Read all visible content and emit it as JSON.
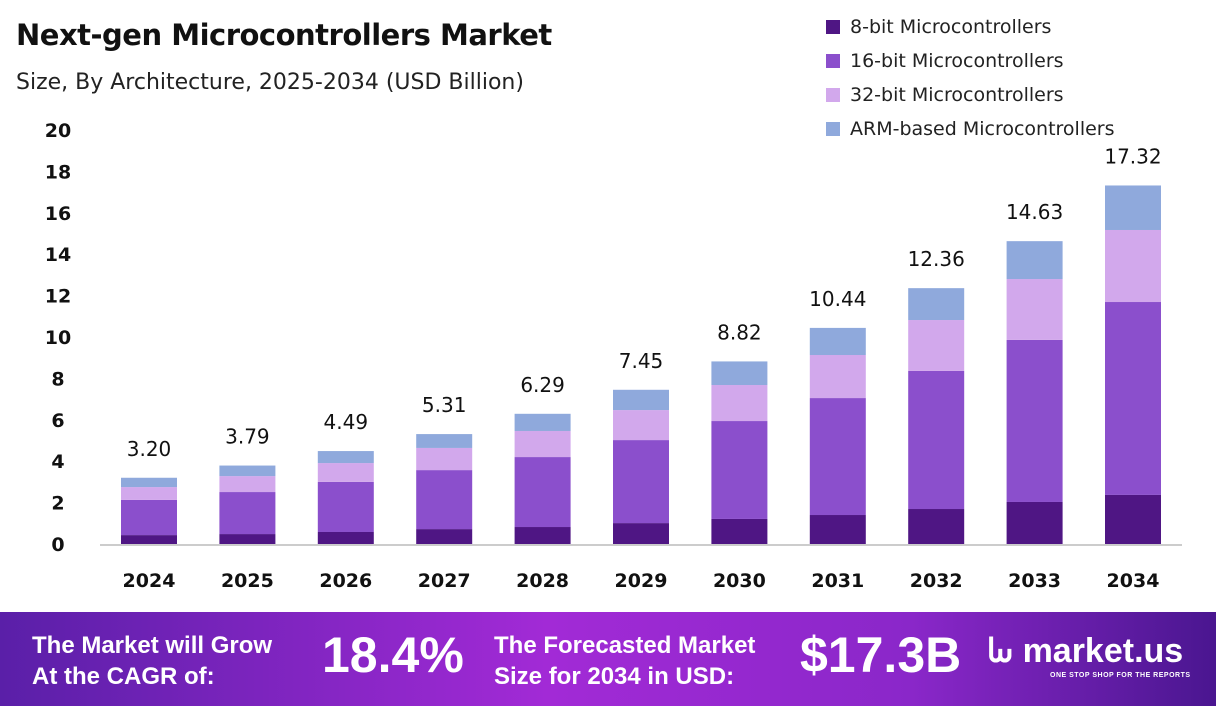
{
  "chart_data": {
    "type": "bar",
    "stacked": true,
    "title": "Next-gen Microcontrollers Market",
    "subtitle": "Size, By Architecture, 2025-2034 (USD Billion)",
    "categories": [
      "2024",
      "2025",
      "2026",
      "2027",
      "2028",
      "2029",
      "2030",
      "2031",
      "2032",
      "2033",
      "2034"
    ],
    "series": [
      {
        "name": "8-bit Microcontrollers",
        "color": "#4f1684",
        "values": [
          0.43,
          0.48,
          0.58,
          0.72,
          0.82,
          1.01,
          1.21,
          1.4,
          1.69,
          2.03,
          2.37
        ]
      },
      {
        "name": "16-bit Microcontrollers",
        "color": "#8b4fcc",
        "values": [
          1.7,
          2.03,
          2.42,
          2.85,
          3.38,
          4.01,
          4.73,
          5.65,
          6.67,
          7.83,
          9.32
        ]
      },
      {
        "name": "32-bit Microcontrollers",
        "color": "#d2a8ec",
        "values": [
          0.62,
          0.77,
          0.91,
          1.07,
          1.26,
          1.45,
          1.74,
          2.08,
          2.46,
          2.94,
          3.48
        ]
      },
      {
        "name": "ARM-based Microcontrollers",
        "color": "#8fa9dc",
        "values": [
          0.45,
          0.51,
          0.58,
          0.67,
          0.83,
          0.98,
          1.14,
          1.31,
          1.54,
          1.83,
          2.15
        ]
      }
    ],
    "totals": [
      "3.20",
      "3.79",
      "4.49",
      "5.31",
      "6.29",
      "7.45",
      "8.82",
      "10.44",
      "12.36",
      "14.63",
      "17.32"
    ],
    "ylim": [
      0,
      20
    ],
    "yticks": [
      "0",
      "2",
      "4",
      "6",
      "8",
      "10",
      "12",
      "14",
      "16",
      "18",
      "20"
    ],
    "grid": false,
    "legend": "top-right"
  },
  "footer": {
    "cagr_label_1": "The Market will Grow",
    "cagr_label_2": "At the CAGR of:",
    "cagr_value": "18.4%",
    "forecast_label_1": "The Forecasted Market",
    "forecast_label_2": "Size for 2034 in USD:",
    "forecast_value": "$17.3B",
    "logo": "market.us",
    "logo_tagline": "ONE STOP SHOP FOR THE REPORTS"
  }
}
